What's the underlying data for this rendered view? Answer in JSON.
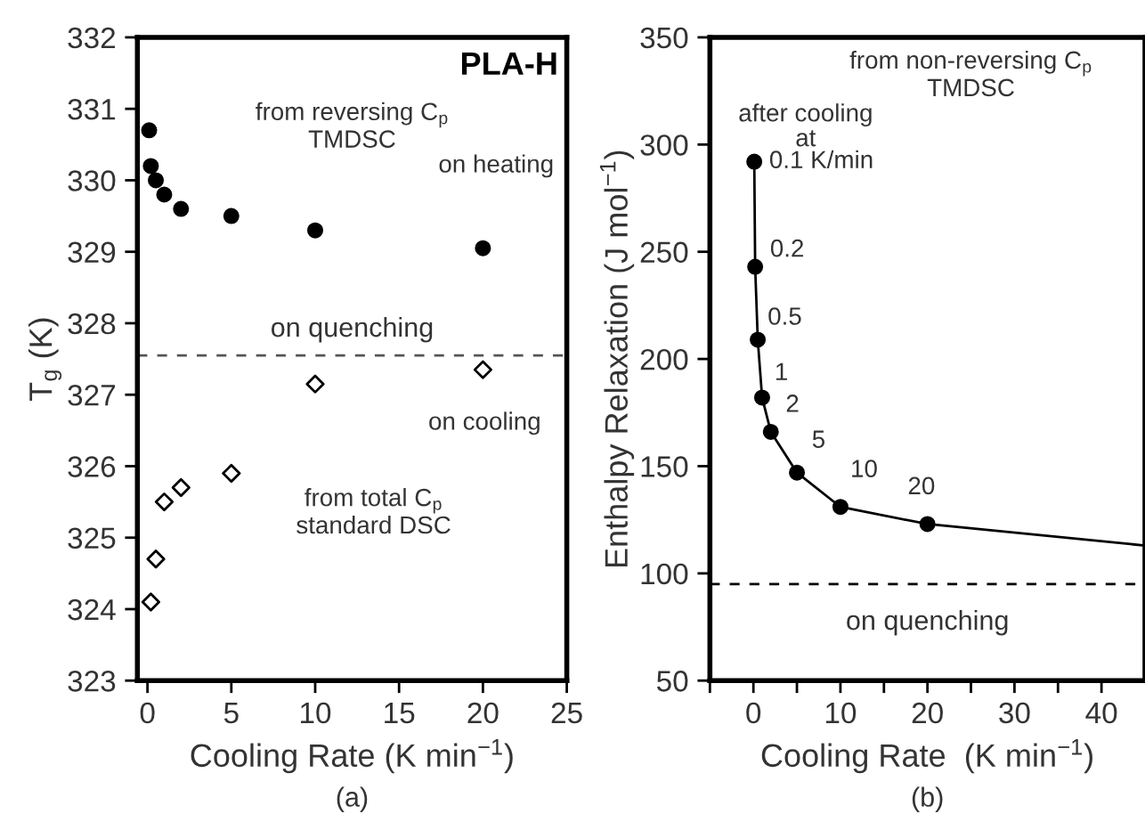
{
  "chart_data": [
    {
      "type": "scatter",
      "xlabel": "Cooling Rate (K min$^{−1}$)",
      "ylabel": "T$_{g}$ (K)",
      "subtitle": "(a)",
      "xlim": [
        -0.6,
        25
      ],
      "ylim": [
        323,
        332
      ],
      "xticks": [
        0,
        5,
        10,
        15,
        20,
        25
      ],
      "yticks": [
        323,
        324,
        325,
        326,
        327,
        328,
        329,
        330,
        331,
        332
      ],
      "grid": false,
      "legend": false,
      "series": [
        {
          "x": [
            0.1,
            0.2,
            0.5,
            1,
            2,
            5,
            10,
            20
          ],
          "values": [
            330.7,
            330.2,
            330.0,
            329.8,
            329.6,
            329.5,
            329.3,
            329.05
          ],
          "color": "#000000",
          "marker": "circle"
        },
        {
          "x": [
            0.2,
            0.5,
            1,
            2,
            5,
            10,
            20
          ],
          "values": [
            324.1,
            324.7,
            325.5,
            325.7,
            325.9,
            327.15,
            327.35
          ],
          "color": "#000000",
          "marker": "diamond"
        }
      ],
      "ref_lines": [
        {
          "axis": "y",
          "value": 327.55,
          "label": "on quenching",
          "line_style": "dashed",
          "color": "#555555"
        }
      ],
      "annotations": [
        "PLA-H",
        "from reversing C$_{p}$\nTMDSC",
        "on heating",
        "on cooling",
        "from total C$_{p}$\nstandard DSC"
      ]
    },
    {
      "type": "line",
      "xlabel": "Cooling Rate  (K min$^{−1}$)",
      "ylabel": "Enthalpy Relaxation (J mol$^{−1}$)",
      "subtitle": "(b)",
      "xlim": [
        -5,
        45
      ],
      "ylim": [
        50,
        350
      ],
      "xticks": [
        {
          "value": -5,
          "label": null
        },
        0,
        {
          "value": 5,
          "label": null
        },
        10,
        {
          "value": 15,
          "label": null
        },
        20,
        {
          "value": 25,
          "label": null
        },
        30,
        {
          "value": 35,
          "label": null
        },
        40
      ],
      "yticks": [
        50,
        100,
        150,
        200,
        250,
        300,
        350
      ],
      "grid": false,
      "legend": false,
      "series": [
        {
          "x": [
            0.1,
            0.2,
            0.5,
            1,
            2,
            5,
            10,
            20,
            45
          ],
          "values": [
            292,
            243,
            209,
            182,
            166,
            147,
            131,
            123,
            113
          ],
          "color": "#000000",
          "marker": "none",
          "line_style": "solid"
        },
        {
          "type": "scatter",
          "x": [
            0.1,
            0.2,
            0.5,
            1,
            2,
            5,
            10,
            20
          ],
          "values": [
            292,
            243,
            209,
            182,
            166,
            147,
            131,
            123
          ],
          "color": "#000000",
          "marker": "circle"
        }
      ],
      "ref_lines": [
        {
          "axis": "y",
          "value": 95,
          "label": "on quenching",
          "line_style": "dashed",
          "color": "#000000"
        }
      ],
      "annotations": [
        "from non-reversing C$_{p}$\nTMDSC",
        "after cooling\nat",
        {
          "text": "0.1 K/min",
          "x": 0.1,
          "y": 292
        },
        {
          "text": "0.2",
          "x": 0.2,
          "y": 243
        },
        {
          "text": "0.5",
          "x": 0.5,
          "y": 209
        },
        {
          "text": "1",
          "x": 1,
          "y": 182
        },
        {
          "text": "2",
          "x": 2,
          "y": 166
        },
        {
          "text": "5",
          "x": 5,
          "y": 147
        },
        {
          "text": "10",
          "x": 10,
          "y": 131
        },
        {
          "text": "20",
          "x": 20,
          "y": 123
        }
      ]
    }
  ]
}
